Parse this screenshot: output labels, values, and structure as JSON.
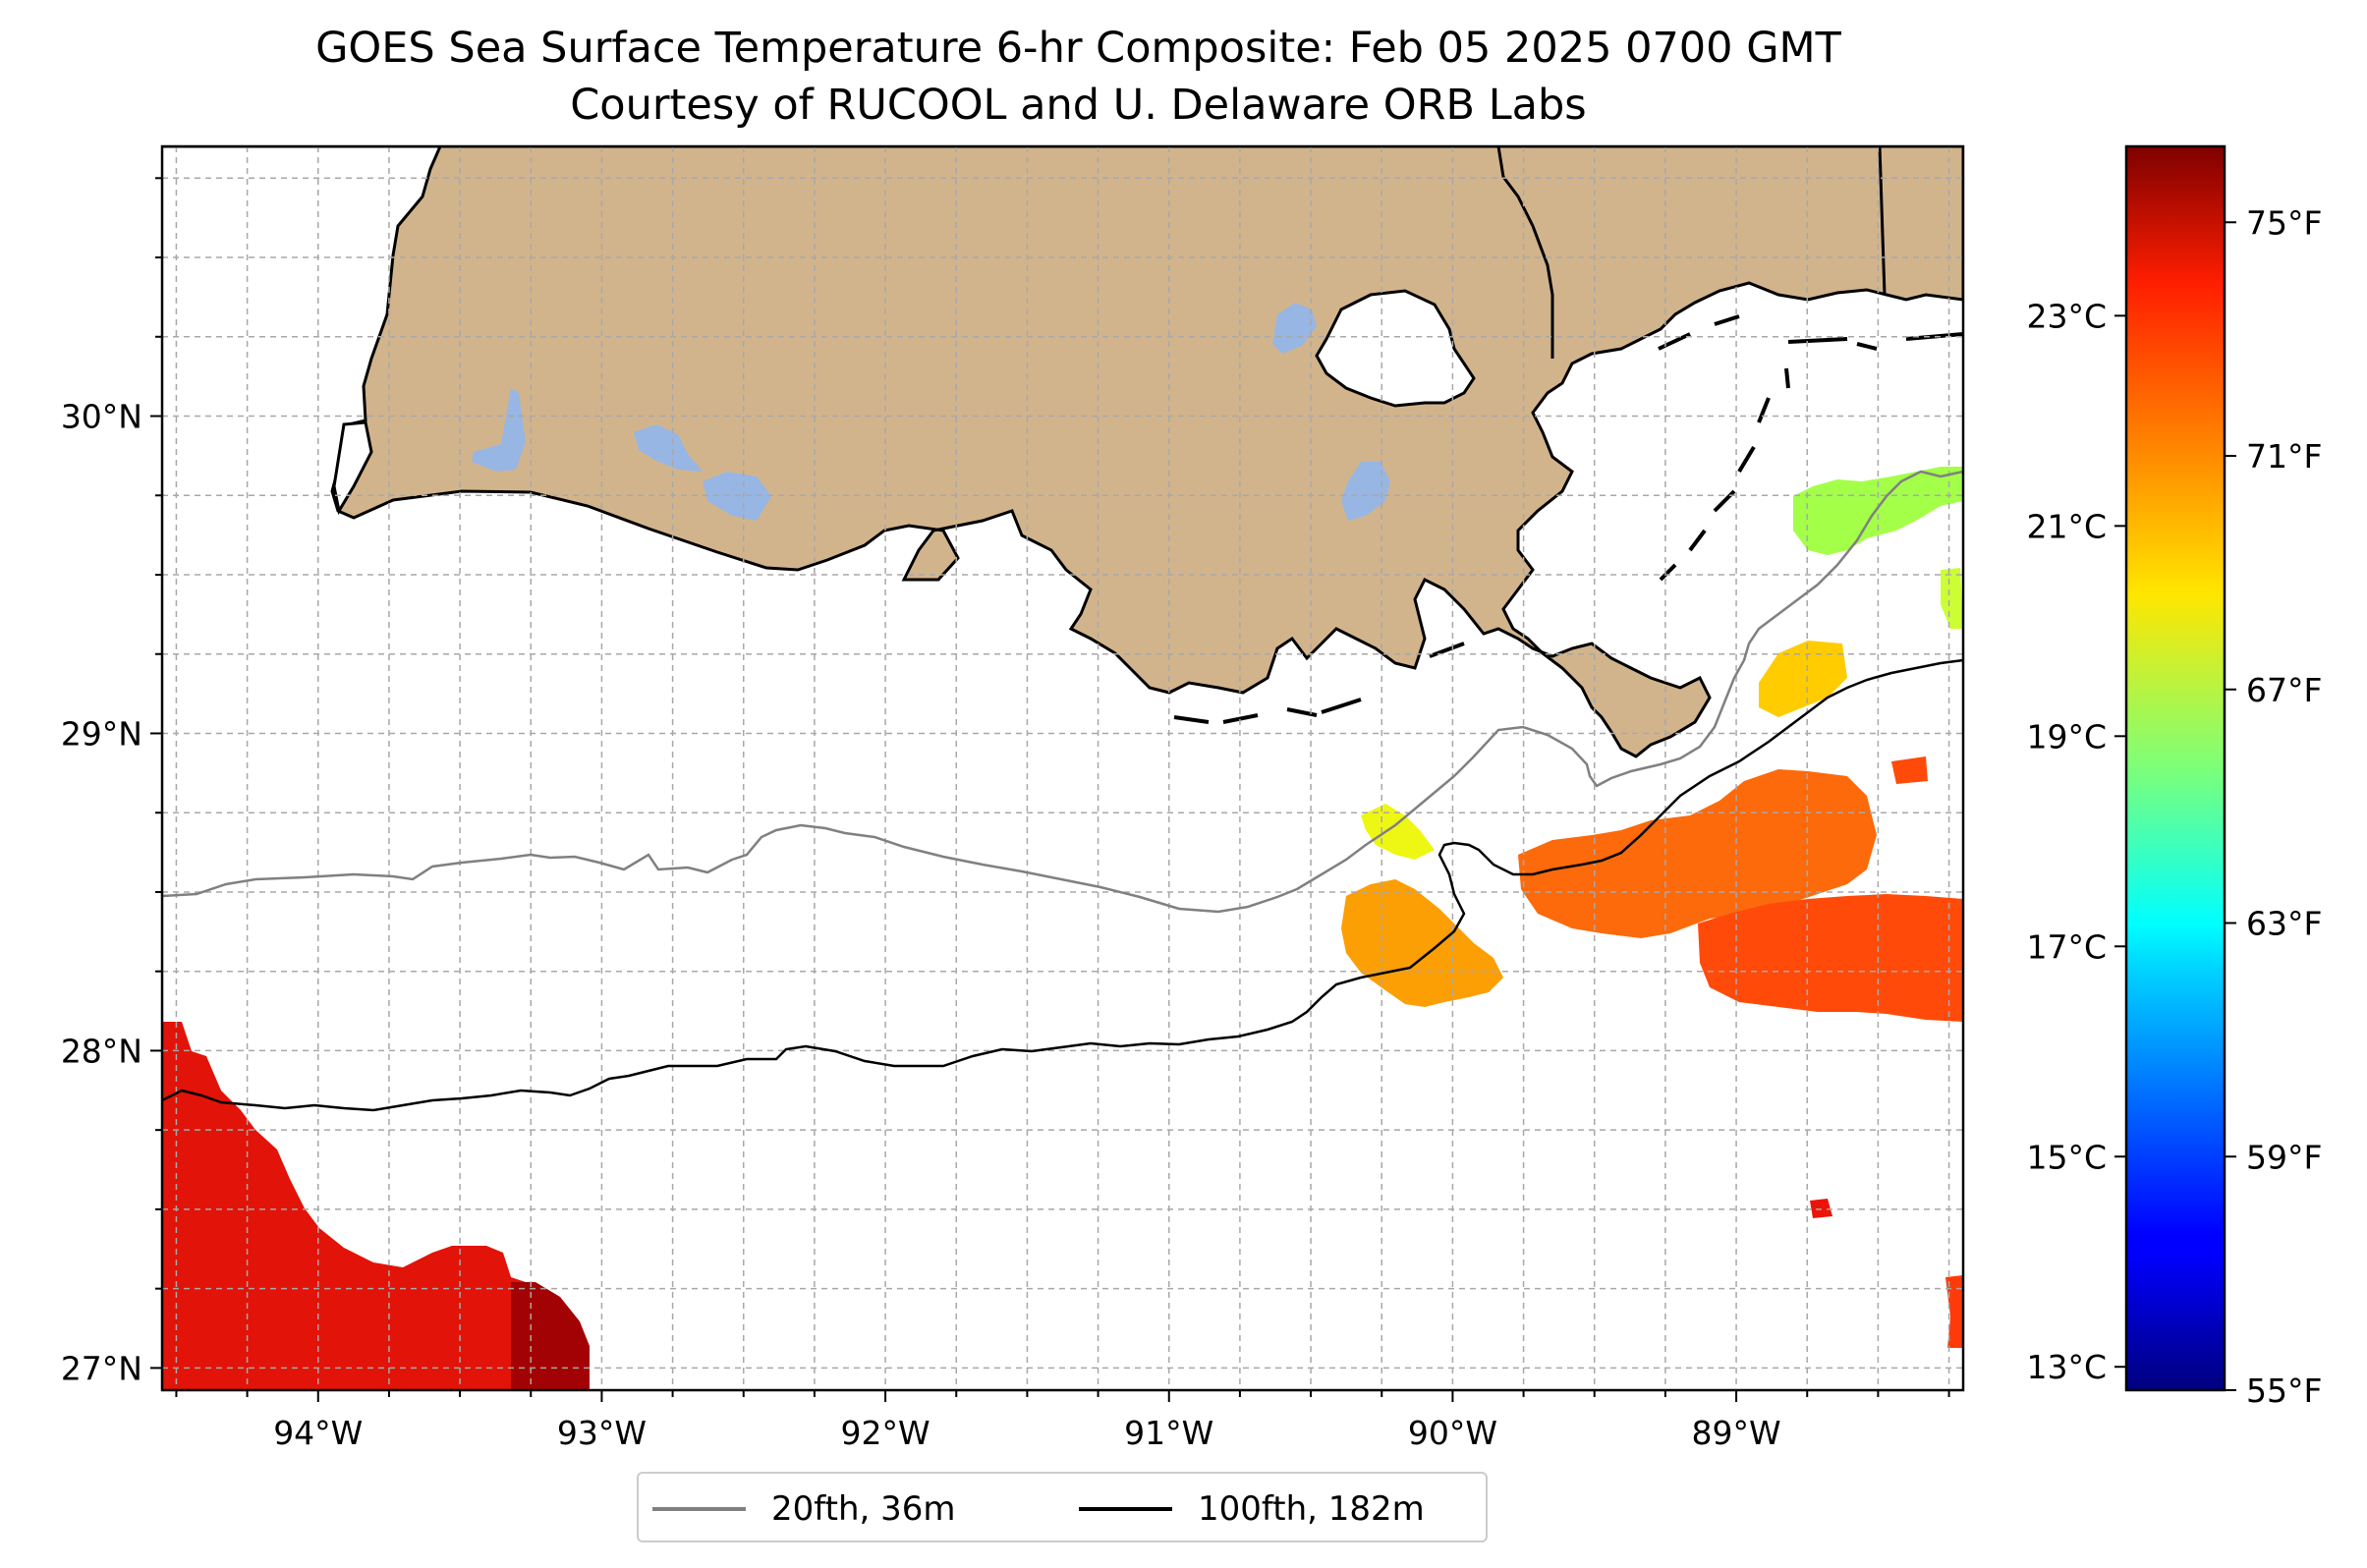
{
  "title_line1": "GOES Sea Surface Temperature 6-hr Composite: Feb 05 2025 0700 GMT",
  "title_line2": "Courtesy of RUCOOL and U. Delaware ORB Labs",
  "map": {
    "lon_range": [
      -94.55,
      -88.2
    ],
    "lat_range": [
      26.93,
      30.85
    ],
    "lat_ticks": [
      {
        "label": "30°N",
        "v": 30
      },
      {
        "label": "29°N",
        "v": 29
      },
      {
        "label": "28°N",
        "v": 28
      },
      {
        "label": "27°N",
        "v": 27
      }
    ],
    "lon_ticks": [
      {
        "label": "94°W",
        "v": -94
      },
      {
        "label": "93°W",
        "v": -93
      },
      {
        "label": "92°W",
        "v": -92
      },
      {
        "label": "91°W",
        "v": -91
      },
      {
        "label": "90°W",
        "v": -90
      },
      {
        "label": "89°W",
        "v": -89
      }
    ],
    "land_color": "#d2b48c",
    "lake_color": "#97b6e3",
    "contour_20fth_color": "#808080",
    "contour_100fth_color": "#000000"
  },
  "colorbar": {
    "colormap": "jet",
    "range_f": [
      55,
      76.3
    ],
    "celsius_ticks": [
      {
        "label": "23°C",
        "v": 23
      },
      {
        "label": "21°C",
        "v": 21
      },
      {
        "label": "19°C",
        "v": 19
      },
      {
        "label": "17°C",
        "v": 17
      },
      {
        "label": "15°C",
        "v": 15
      },
      {
        "label": "13°C",
        "v": 13
      }
    ],
    "fahrenheit_ticks": [
      {
        "label": "75°F",
        "v": 75
      },
      {
        "label": "71°F",
        "v": 71
      },
      {
        "label": "67°F",
        "v": 67
      },
      {
        "label": "63°F",
        "v": 63
      },
      {
        "label": "59°F",
        "v": 59
      },
      {
        "label": "55°F",
        "v": 55
      }
    ]
  },
  "legend": {
    "item1": {
      "label": "20fth, 36m",
      "color": "#808080"
    },
    "item2": {
      "label": "100fth, 182m",
      "color": "#000000"
    }
  }
}
